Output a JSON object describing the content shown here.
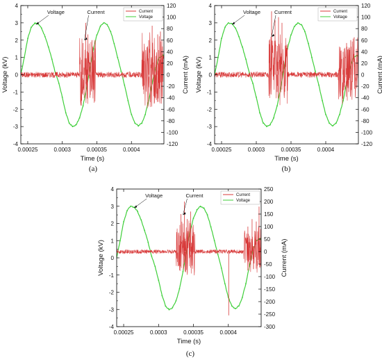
{
  "figure": {
    "panels": [
      {
        "id": "a",
        "caption": "(a)"
      },
      {
        "id": "b",
        "caption": "(b)"
      },
      {
        "id": "c",
        "caption": "(c)"
      }
    ],
    "colors": {
      "voltage": "#3fcf3a",
      "current": "#d83a3a",
      "frame": "#000000",
      "background": "#ffffff"
    }
  },
  "chart_data": [
    {
      "panel": "a",
      "type": "line",
      "xlabel": "Time (s)",
      "ylabel_left": "Voltage (kV)",
      "ylabel_right": "Current (mA)",
      "xlim": [
        0.00024,
        0.000447
      ],
      "ylim_left": [
        -4,
        4
      ],
      "ylim_right": [
        -120,
        120
      ],
      "x_ticks": [
        "0.00025",
        "0.0003",
        "0.00035",
        "0.0004"
      ],
      "x_tick_values": [
        0.00025,
        0.0003,
        0.00035,
        0.0004
      ],
      "y_ticks_left": [
        -4,
        -3,
        -2,
        -1,
        0,
        1,
        2,
        3,
        4
      ],
      "y_ticks_right": [
        -120,
        -100,
        -80,
        -60,
        -40,
        -20,
        0,
        20,
        40,
        60,
        80,
        100,
        120
      ],
      "legend": {
        "position": "top-right",
        "entries": [
          "Current",
          "Voltage"
        ]
      },
      "annotations": [
        {
          "text": "Voltage",
          "target": [
            0.000262,
            2.9
          ]
        },
        {
          "text": "Current",
          "target": [
            0.000332,
            2.0
          ]
        }
      ],
      "series": [
        {
          "name": "Voltage",
          "axis": "left",
          "x": [
            0.00024,
            0.000245,
            0.00025,
            0.000255,
            0.00026,
            0.000265,
            0.00027,
            0.000275,
            0.00028,
            0.000285,
            0.00029,
            0.000295,
            0.0003,
            0.000305,
            0.00031,
            0.000315,
            0.00032,
            0.000325,
            0.00033,
            0.000335,
            0.00034,
            0.000345,
            0.00035,
            0.000355,
            0.00036,
            0.000365,
            0.00037,
            0.000375,
            0.00038,
            0.000385,
            0.00039,
            0.000395,
            0.0004,
            0.000405,
            0.00041,
            0.000415,
            0.00042,
            0.000425,
            0.00043,
            0.000435,
            0.00044,
            0.000445,
            0.000447
          ],
          "y": [
            0.0,
            1.0,
            2.1,
            2.75,
            2.98,
            2.95,
            2.7,
            2.2,
            1.6,
            0.9,
            0.1,
            -0.5,
            -1.3,
            -2.2,
            -2.8,
            -3.0,
            -2.9,
            -2.5,
            -1.8,
            -0.8,
            0.4,
            1.5,
            2.3,
            2.8,
            3.0,
            2.9,
            2.5,
            1.8,
            1.0,
            0.2,
            -0.6,
            -1.5,
            -2.3,
            -2.8,
            -2.95,
            -2.8,
            -2.3,
            -1.5,
            -0.5,
            0.4,
            1.0,
            1.1,
            1.1
          ]
        },
        {
          "name": "Current",
          "axis": "right",
          "bursts": [
            {
              "x_range": [
                0.000325,
                0.000348
              ],
              "amplitude": 60,
              "peaks": [
                [
                  0.00033,
                  55
                ],
                [
                  0.000334,
                  90
                ],
                [
                  0.000337,
                  70
                ],
                [
                  0.000343,
                  60
                ],
                [
                  0.00034,
                  -40
                ]
              ]
            },
            {
              "x_range": [
                0.000415,
                0.000447
              ],
              "amplitude": 65,
              "peaks": [
                [
                  0.000425,
                  60
                ],
                [
                  0.00043,
                  85
                ],
                [
                  0.000438,
                  70
                ],
                [
                  0.000442,
                  75
                ],
                [
                  0.000433,
                  -50
                ]
              ]
            }
          ],
          "baseline_noise": 5
        }
      ]
    },
    {
      "panel": "b",
      "type": "line",
      "xlabel": "Time (s)",
      "ylabel_left": "Voltage (kV)",
      "ylabel_right": "Current (mA)",
      "xlim": [
        0.00024,
        0.000447
      ],
      "ylim_left": [
        -4,
        4
      ],
      "ylim_right": [
        -120,
        120
      ],
      "x_ticks": [
        "0.00025",
        "0.0003",
        "0.00035",
        "0.0004"
      ],
      "x_tick_values": [
        0.00025,
        0.0003,
        0.00035,
        0.0004
      ],
      "y_ticks_left": [
        -4,
        -3,
        -2,
        -1,
        0,
        1,
        2,
        3,
        4
      ],
      "y_ticks_right": [
        -120,
        -100,
        -80,
        -60,
        -40,
        -20,
        0,
        20,
        40,
        60,
        80,
        100,
        120
      ],
      "legend": {
        "position": "top-right",
        "entries": [
          "Current",
          "Voltage"
        ]
      },
      "annotations": [
        {
          "text": "Voltage",
          "target": [
            0.000265,
            2.9
          ]
        },
        {
          "text": "Current",
          "target": [
            0.000322,
            2.2
          ]
        }
      ],
      "series": [
        {
          "name": "Voltage",
          "axis": "left",
          "x": [
            0.00024,
            0.000245,
            0.00025,
            0.000255,
            0.00026,
            0.000265,
            0.00027,
            0.000275,
            0.00028,
            0.000285,
            0.00029,
            0.000295,
            0.0003,
            0.000305,
            0.00031,
            0.000315,
            0.00032,
            0.000325,
            0.00033,
            0.000335,
            0.00034,
            0.000345,
            0.00035,
            0.000355,
            0.00036,
            0.000365,
            0.00037,
            0.000375,
            0.00038,
            0.000385,
            0.00039,
            0.000395,
            0.0004,
            0.000405,
            0.00041,
            0.000415,
            0.00042,
            0.000425,
            0.00043,
            0.000435,
            0.00044,
            0.000445,
            0.000447
          ],
          "y": [
            0.0,
            1.0,
            2.1,
            2.75,
            3.0,
            2.95,
            2.7,
            2.2,
            1.6,
            0.9,
            0.1,
            -0.5,
            -1.3,
            -2.2,
            -2.8,
            -3.0,
            -2.9,
            -2.5,
            -1.8,
            -0.8,
            0.4,
            1.5,
            2.3,
            2.8,
            3.0,
            2.9,
            2.5,
            1.8,
            1.0,
            0.2,
            -0.6,
            -1.5,
            -2.3,
            -2.8,
            -2.95,
            -2.8,
            -2.3,
            -1.5,
            -0.5,
            0.4,
            1.0,
            1.1,
            1.1
          ]
        },
        {
          "name": "Current",
          "axis": "right",
          "bursts": [
            {
              "x_range": [
                0.000318,
                0.000345
              ],
              "amplitude": 60,
              "peaks": [
                [
                  0.000322,
                  110
                ],
                [
                  0.000327,
                  95
                ],
                [
                  0.000332,
                  100
                ],
                [
                  0.000337,
                  90
                ],
                [
                  0.00033,
                  -30
                ]
              ]
            },
            {
              "x_range": [
                0.000418,
                0.000447
              ],
              "amplitude": 55,
              "peaks": [
                [
                  0.000425,
                  40
                ],
                [
                  0.00043,
                  55
                ],
                [
                  0.000436,
                  60
                ],
                [
                  0.000441,
                  65
                ],
                [
                  0.000433,
                  -30
                ]
              ]
            }
          ],
          "baseline_noise": 5
        }
      ]
    },
    {
      "panel": "c",
      "type": "line",
      "xlabel": "Time (s)",
      "ylabel_left": "Voltage (kV)",
      "ylabel_right": "Current (mA)",
      "xlim": [
        0.00024,
        0.000447
      ],
      "ylim_left": [
        -4,
        4
      ],
      "ylim_right": [
        -300,
        250
      ],
      "x_ticks": [
        "0.00025",
        "0.0003",
        "0.00035",
        "0.0004"
      ],
      "x_tick_values": [
        0.00025,
        0.0003,
        0.00035,
        0.0004
      ],
      "y_ticks_left": [
        -4,
        -3,
        -2,
        -1,
        0,
        1,
        2,
        3,
        4
      ],
      "y_ticks_right": [
        -300,
        -250,
        -200,
        -150,
        -100,
        -50,
        0,
        50,
        100,
        150,
        200,
        250
      ],
      "legend": {
        "position": "top-right",
        "entries": [
          "Current",
          "Voltage"
        ]
      },
      "annotations": [
        {
          "text": "Voltage",
          "target": [
            0.000265,
            2.9
          ]
        },
        {
          "text": "Current",
          "target": [
            0.000335,
            2.5
          ]
        }
      ],
      "series": [
        {
          "name": "Voltage",
          "axis": "left",
          "x": [
            0.00024,
            0.000245,
            0.00025,
            0.000255,
            0.00026,
            0.000265,
            0.00027,
            0.000275,
            0.00028,
            0.000285,
            0.00029,
            0.000295,
            0.0003,
            0.000305,
            0.00031,
            0.000315,
            0.00032,
            0.000325,
            0.00033,
            0.000335,
            0.00034,
            0.000345,
            0.00035,
            0.000355,
            0.00036,
            0.000365,
            0.00037,
            0.000375,
            0.00038,
            0.000385,
            0.00039,
            0.000395,
            0.0004,
            0.000405,
            0.00041,
            0.000415,
            0.00042,
            0.000425,
            0.00043,
            0.000435,
            0.00044,
            0.000445,
            0.000447
          ],
          "y": [
            0.0,
            1.0,
            2.1,
            2.75,
            3.0,
            2.95,
            2.7,
            2.2,
            1.6,
            0.9,
            0.1,
            -0.5,
            -1.3,
            -2.2,
            -2.8,
            -3.0,
            -2.9,
            -2.5,
            -1.8,
            -0.8,
            0.4,
            1.5,
            2.3,
            2.8,
            3.0,
            2.9,
            2.5,
            1.8,
            1.0,
            0.2,
            -0.6,
            -1.5,
            -2.3,
            -2.8,
            -2.95,
            -2.8,
            -2.3,
            -1.5,
            -0.5,
            0.4,
            1.0,
            1.1,
            1.1
          ]
        },
        {
          "name": "Current",
          "axis": "right",
          "bursts": [
            {
              "x_range": [
                0.000325,
                0.000352
              ],
              "amplitude": 110,
              "peaks": [
                [
                  0.000332,
                  150
                ],
                [
                  0.000337,
                  200
                ],
                [
                  0.000341,
                  130
                ],
                [
                  0.000346,
                  160
                ],
                [
                  0.000338,
                  -80
                ]
              ]
            },
            {
              "x_range": [
                0.0004,
                0.0004015
              ],
              "amplitude": 0,
              "peaks": [
                [
                  0.0004005,
                  -255
                ]
              ]
            },
            {
              "x_range": [
                0.000422,
                0.000447
              ],
              "amplitude": 90,
              "peaks": [
                [
                  0.000428,
                  100
                ],
                [
                  0.000434,
                  130
                ],
                [
                  0.00044,
                  120
                ],
                [
                  0.000444,
                  180
                ],
                [
                  0.000436,
                  -70
                ]
              ]
            }
          ],
          "baseline_noise": 8
        }
      ]
    }
  ]
}
